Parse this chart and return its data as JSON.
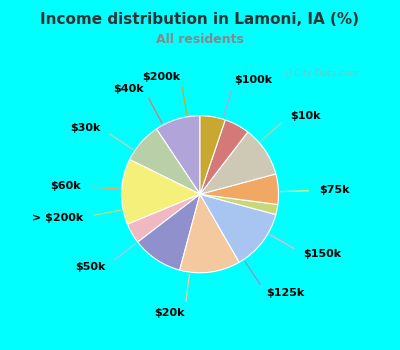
{
  "title": "Income distribution in Lamoni, IA (%)",
  "subtitle": "All residents",
  "title_color": "#333333",
  "subtitle_color": "#888888",
  "background_outer": "#00ffff",
  "background_inner": "#e8f5ee",
  "watermark": "ⓘ City-Data.com",
  "labels": [
    "$100k",
    "$10k",
    "$75k",
    "$150k",
    "$125k",
    "$20k",
    "$50k",
    "> $200k",
    "$60k",
    "$30k",
    "$40k",
    "$200k"
  ],
  "values": [
    9,
    8,
    13,
    4,
    10,
    12,
    12,
    2,
    6,
    10,
    5,
    5
  ],
  "colors": [
    "#b0a4d8",
    "#b8cfa8",
    "#f5f07a",
    "#f0b8c0",
    "#9090cc",
    "#f5c9a0",
    "#a8c4f0",
    "#c8d878",
    "#f0a864",
    "#cdc9b4",
    "#d47878",
    "#c8a830"
  ],
  "startangle": 90,
  "label_fontsize": 8,
  "label_fontweight": "bold"
}
